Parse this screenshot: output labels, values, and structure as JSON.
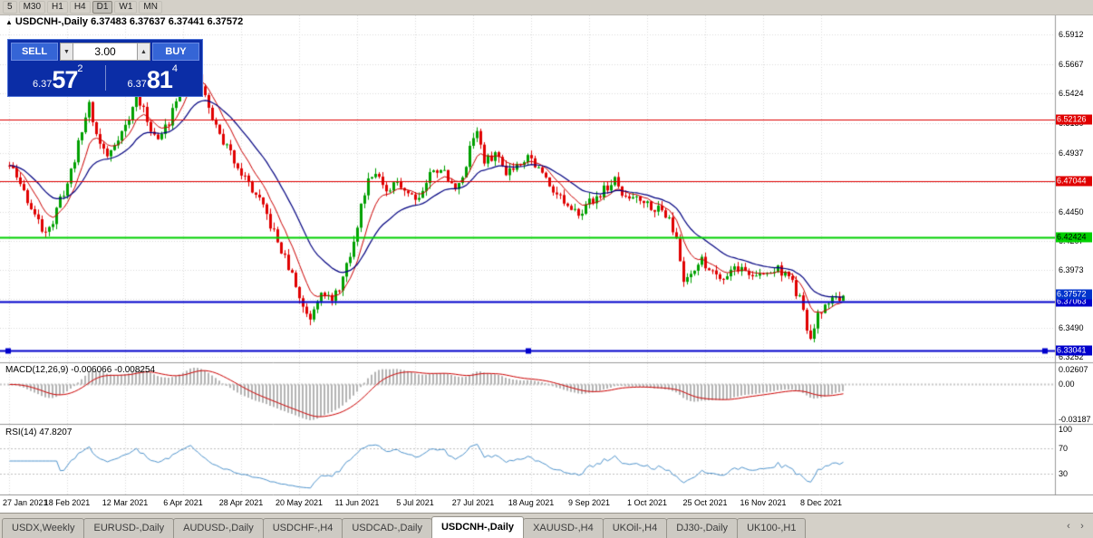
{
  "toolbar": {
    "timeframes": [
      {
        "label": "5",
        "active": false
      },
      {
        "label": "M30",
        "active": false
      },
      {
        "label": "H1",
        "active": false
      },
      {
        "label": "H4",
        "active": false
      },
      {
        "label": "D1",
        "active": true
      },
      {
        "label": "W1",
        "active": false
      },
      {
        "label": "MN",
        "active": false
      }
    ]
  },
  "chart": {
    "collapse_arrow": "▲",
    "title_symbol": "USDCNH-,Daily",
    "title_ohlc": "6.37483 6.37637 6.37441 6.37572"
  },
  "trade_panel": {
    "sell_label": "SELL",
    "buy_label": "BUY",
    "volume": "3.00",
    "spin_down": "▼",
    "spin_up": "▲",
    "sell_price_small": "6.37",
    "sell_price_big": "57",
    "sell_price_sup": "2",
    "buy_price_small": "6.37",
    "buy_price_big": "81",
    "buy_price_sup": "4"
  },
  "indicators": {
    "macd": {
      "label": "MACD(12,26,9)",
      "values": "-0.006066 -0.008254",
      "fast": 12,
      "slow": 26,
      "signal": 9
    },
    "rsi": {
      "label": "RSI(14)",
      "value": "47.8207",
      "period": 14
    }
  },
  "axis": {
    "price_ticks": [
      {
        "label": "6.5912",
        "value": 6.5912
      },
      {
        "label": "6.5667",
        "value": 6.5667
      },
      {
        "label": "6.5424",
        "value": 6.5424
      },
      {
        "label": "6.5180",
        "value": 6.518
      },
      {
        "label": "6.4937",
        "value": 6.4937
      },
      {
        "label": "6.4693",
        "value": 6.4693
      },
      {
        "label": "6.4450",
        "value": 6.445
      },
      {
        "label": "6.4207",
        "value": 6.4207
      },
      {
        "label": "6.3973",
        "value": 6.3973
      },
      {
        "label": "6.3730",
        "value": 6.373
      },
      {
        "label": "6.3490",
        "value": 6.349
      },
      {
        "label": "6.3252",
        "value": 6.3252
      }
    ],
    "macd_ticks": [
      "0.02607",
      "0.00",
      "-0.03187"
    ],
    "rsi_ticks": [
      100,
      70,
      30
    ],
    "dates": [
      {
        "label": "27 Jan 2021",
        "i": 0
      },
      {
        "label": "18 Feb 2021",
        "i": 16
      },
      {
        "label": "12 Mar 2021",
        "i": 32
      },
      {
        "label": "6 Apr 2021",
        "i": 48
      },
      {
        "label": "28 Apr 2021",
        "i": 64
      },
      {
        "label": "20 May 2021",
        "i": 80
      },
      {
        "label": "11 Jun 2021",
        "i": 96
      },
      {
        "label": "5 Jul 2021",
        "i": 112
      },
      {
        "label": "27 Jul 2021",
        "i": 128
      },
      {
        "label": "18 Aug 2021",
        "i": 144
      },
      {
        "label": "9 Sep 2021",
        "i": 160
      },
      {
        "label": "1 Oct 2021",
        "i": 176
      },
      {
        "label": "25 Oct 2021",
        "i": 192
      },
      {
        "label": "16 Nov 2021",
        "i": 208
      },
      {
        "label": "8 Dec 2021",
        "i": 224
      }
    ]
  },
  "levels": [
    {
      "label": "6.52126",
      "price": 6.52126,
      "color": "#e00000",
      "text_color": "#ffffff",
      "width": 1,
      "handles": false
    },
    {
      "label": "6.47044",
      "price": 6.47044,
      "color": "#e00000",
      "text_color": "#ffffff",
      "width": 1,
      "handles": false
    },
    {
      "label": "6.42424",
      "price": 6.42424,
      "color": "#00d000",
      "text_color": "#000000",
      "width": 2,
      "handles": false
    },
    {
      "label": "6.37063",
      "price": 6.37063,
      "color": "#0000cc",
      "text_color": "#ffffff",
      "width": 2,
      "handles": false
    },
    {
      "label": "6.33041",
      "price": 6.33041,
      "color": "#0000cc",
      "text_color": "#ffffff",
      "width": 2,
      "handles": true
    }
  ],
  "current_price": {
    "label": "6.37572",
    "value": 6.37572,
    "color": "#0033cc",
    "text_color": "#ffffff"
  },
  "chart_data": {
    "type": "candlestick",
    "symbol": "USDCNH-",
    "timeframe": "Daily",
    "title": "USDCNH-,Daily",
    "ylim": [
      6.3252,
      6.5912
    ],
    "candle_count": 231,
    "seed": 11,
    "last_candle": {
      "open": 6.37483,
      "high": 6.37637,
      "low": 6.37441,
      "close": 6.37572
    },
    "trend": [
      [
        0,
        6.483
      ],
      [
        3,
        6.468
      ],
      [
        6,
        6.448
      ],
      [
        9,
        6.43
      ],
      [
        12,
        6.436
      ],
      [
        14,
        6.455
      ],
      [
        16,
        6.468
      ],
      [
        19,
        6.5
      ],
      [
        22,
        6.535
      ],
      [
        24,
        6.508
      ],
      [
        27,
        6.49
      ],
      [
        30,
        6.507
      ],
      [
        33,
        6.52
      ],
      [
        35,
        6.543
      ],
      [
        38,
        6.52
      ],
      [
        41,
        6.503
      ],
      [
        44,
        6.52
      ],
      [
        47,
        6.55
      ],
      [
        50,
        6.571
      ],
      [
        52,
        6.558
      ],
      [
        55,
        6.53
      ],
      [
        58,
        6.508
      ],
      [
        62,
        6.488
      ],
      [
        66,
        6.468
      ],
      [
        70,
        6.448
      ],
      [
        74,
        6.42
      ],
      [
        78,
        6.392
      ],
      [
        81,
        6.366
      ],
      [
        83,
        6.358
      ],
      [
        86,
        6.382
      ],
      [
        89,
        6.37
      ],
      [
        92,
        6.39
      ],
      [
        95,
        6.418
      ],
      [
        97,
        6.45
      ],
      [
        99,
        6.473
      ],
      [
        101,
        6.48
      ],
      [
        104,
        6.458
      ],
      [
        107,
        6.47
      ],
      [
        110,
        6.461
      ],
      [
        113,
        6.457
      ],
      [
        116,
        6.476
      ],
      [
        119,
        6.482
      ],
      [
        122,
        6.466
      ],
      [
        125,
        6.47
      ],
      [
        127,
        6.5
      ],
      [
        129,
        6.513
      ],
      [
        131,
        6.485
      ],
      [
        134,
        6.493
      ],
      [
        137,
        6.479
      ],
      [
        140,
        6.484
      ],
      [
        143,
        6.492
      ],
      [
        146,
        6.48
      ],
      [
        149,
        6.468
      ],
      [
        152,
        6.457
      ],
      [
        155,
        6.443
      ],
      [
        158,
        6.447
      ],
      [
        161,
        6.455
      ],
      [
        164,
        6.463
      ],
      [
        167,
        6.47
      ],
      [
        170,
        6.455
      ],
      [
        173,
        6.459
      ],
      [
        176,
        6.452
      ],
      [
        179,
        6.447
      ],
      [
        182,
        6.442
      ],
      [
        184,
        6.42
      ],
      [
        186,
        6.388
      ],
      [
        188,
        6.396
      ],
      [
        191,
        6.404
      ],
      [
        194,
        6.396
      ],
      [
        197,
        6.391
      ],
      [
        200,
        6.4
      ],
      [
        203,
        6.396
      ],
      [
        206,
        6.391
      ],
      [
        209,
        6.394
      ],
      [
        212,
        6.398
      ],
      [
        215,
        6.392
      ],
      [
        218,
        6.372
      ],
      [
        221,
        6.338
      ],
      [
        223,
        6.358
      ],
      [
        226,
        6.372
      ],
      [
        230,
        6.3757
      ]
    ]
  },
  "colors": {
    "up": "#00a000",
    "down": "#e00000",
    "ma_fast": "#cc0000",
    "ma_slow": "#000080",
    "macd_hist": "#b4b4b4",
    "macd_signal": "#cc0000",
    "rsi": "#4f94cd",
    "grid": "#dadada",
    "separator": "#9a9a9a"
  },
  "tabs": [
    {
      "label": "USDX,Weekly",
      "active": false
    },
    {
      "label": "EURUSD-,Daily",
      "active": false
    },
    {
      "label": "AUDUSD-,Daily",
      "active": false
    },
    {
      "label": "USDCHF-,H4",
      "active": false
    },
    {
      "label": "USDCAD-,Daily",
      "active": false
    },
    {
      "label": "USDCNH-,Daily",
      "active": true
    },
    {
      "label": "XAUUSD-,H4",
      "active": false
    },
    {
      "label": "UKOil-,H4",
      "active": false
    },
    {
      "label": "DJ30-,Daily",
      "active": false
    },
    {
      "label": "UK100-,H1",
      "active": false
    }
  ],
  "tab_scroll": {
    "left": "‹",
    "right": "›"
  }
}
